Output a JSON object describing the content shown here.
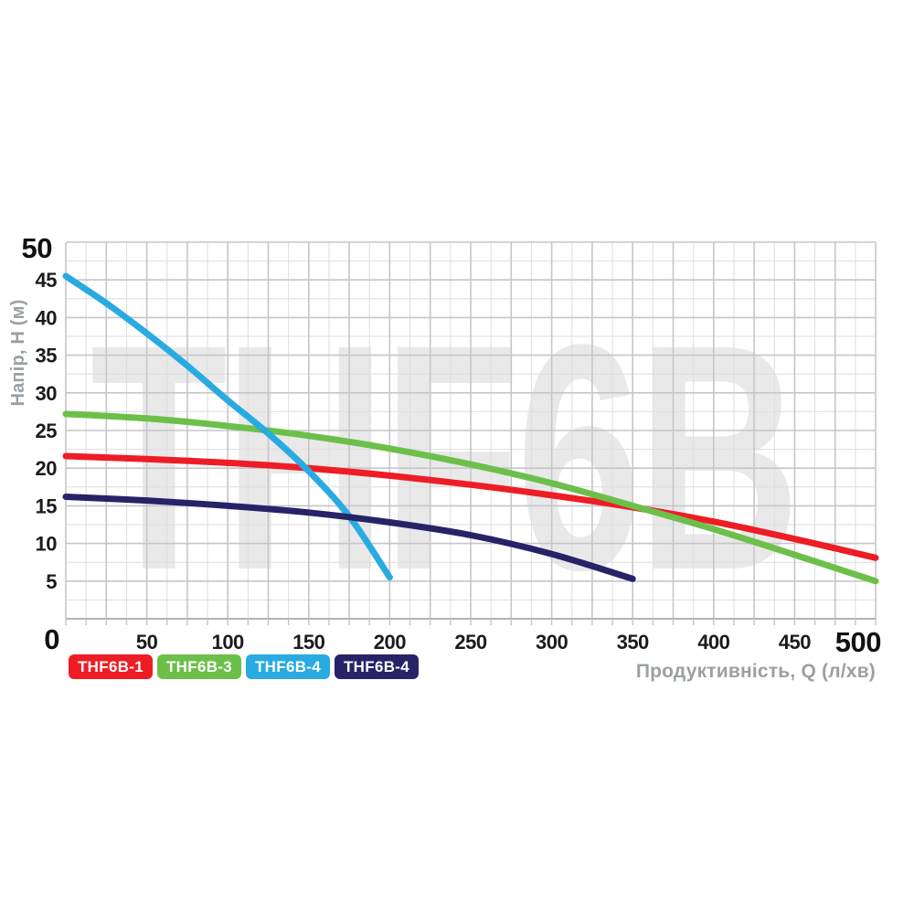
{
  "watermark": "THF6B",
  "colors": {
    "background": "#ffffff",
    "grid_minor": "#dedede",
    "grid_major": "#c6c6ca",
    "axis_line": "#b2b2b8",
    "watermark": "#e9e9ea",
    "tick_text": "#1b1b1d",
    "muted_label": "#9ba0a5",
    "series_red": "#ee1c25",
    "series_green": "#6cc04a",
    "series_cyan": "#29abe2",
    "series_navy": "#272367"
  },
  "chart_data": {
    "type": "line",
    "title": "",
    "xlabel": "Продуктивність, Q (л/хв)",
    "ylabel": "Напір, H (м)",
    "xlim": [
      0,
      500
    ],
    "ylim": [
      0,
      50
    ],
    "x_ticks": [
      0,
      50,
      100,
      150,
      200,
      250,
      300,
      350,
      400,
      450,
      500
    ],
    "y_ticks": [
      0,
      5,
      10,
      15,
      20,
      25,
      30,
      35,
      40,
      45,
      50
    ],
    "grid": {
      "minor_x_step": 12.5,
      "major_x_step": 25,
      "minor_y_step": 2.5,
      "major_y_step": 5
    },
    "legend_position": "bottom-left",
    "series": [
      {
        "name": "THF6B-1",
        "color": "#ee1c25",
        "points": [
          [
            0,
            21.6
          ],
          [
            50,
            21.2
          ],
          [
            100,
            20.7
          ],
          [
            150,
            20.0
          ],
          [
            200,
            19.0
          ],
          [
            250,
            17.8
          ],
          [
            300,
            16.4
          ],
          [
            350,
            14.8
          ],
          [
            400,
            12.9
          ],
          [
            450,
            10.6
          ],
          [
            500,
            8.1
          ]
        ]
      },
      {
        "name": "THF6B-3",
        "color": "#6cc04a",
        "points": [
          [
            0,
            27.2
          ],
          [
            50,
            26.6
          ],
          [
            100,
            25.6
          ],
          [
            150,
            24.3
          ],
          [
            200,
            22.6
          ],
          [
            250,
            20.5
          ],
          [
            300,
            18.0
          ],
          [
            350,
            15.0
          ],
          [
            400,
            11.9
          ],
          [
            450,
            8.5
          ],
          [
            500,
            5.0
          ]
        ]
      },
      {
        "name": "THF6B-4",
        "color": "#29abe2",
        "points": [
          [
            0,
            45.5
          ],
          [
            25,
            41.9
          ],
          [
            50,
            37.9
          ],
          [
            75,
            33.6
          ],
          [
            100,
            29.0
          ],
          [
            125,
            24.6
          ],
          [
            150,
            19.6
          ],
          [
            175,
            13.6
          ],
          [
            200,
            5.5
          ]
        ]
      },
      {
        "name": "THF6B-4",
        "color": "#272367",
        "points": [
          [
            0,
            16.2
          ],
          [
            50,
            15.7
          ],
          [
            100,
            15.0
          ],
          [
            150,
            14.1
          ],
          [
            200,
            12.8
          ],
          [
            250,
            11.1
          ],
          [
            300,
            8.6
          ],
          [
            350,
            5.3
          ]
        ]
      }
    ],
    "legend": [
      {
        "label": "THF6B-1",
        "color": "#ee1c25"
      },
      {
        "label": "THF6B-3",
        "color": "#6cc04a"
      },
      {
        "label": "THF6B-4",
        "color": "#29abe2"
      },
      {
        "label": "THF6B-4",
        "color": "#272367"
      }
    ]
  }
}
